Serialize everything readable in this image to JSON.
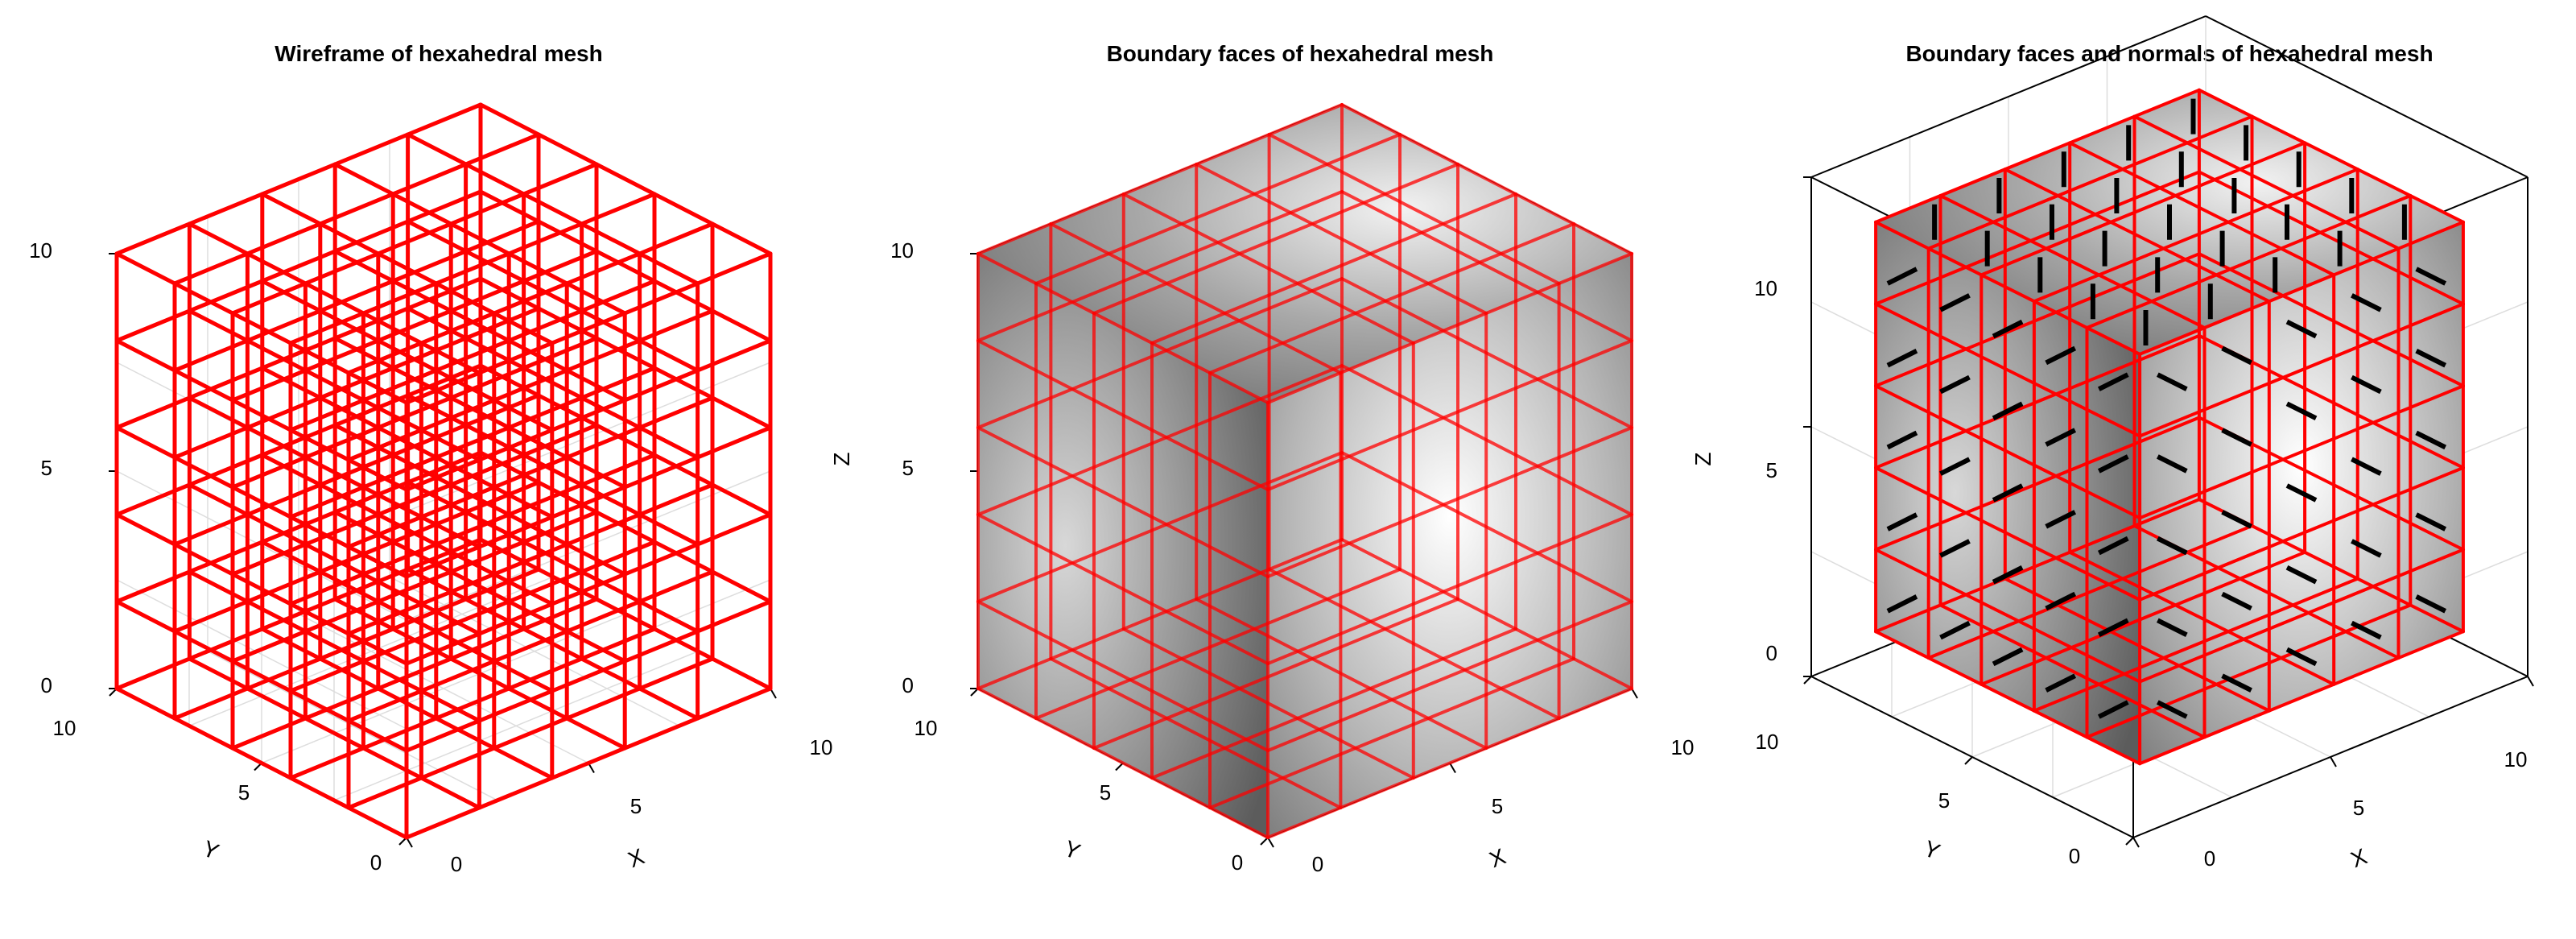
{
  "figure": {
    "panels": [
      {
        "title": "Wireframe of hexahedral mesh",
        "mode": "wireframe"
      },
      {
        "title": "Boundary faces of hexahedral mesh",
        "mode": "faces"
      },
      {
        "title": "Boundary faces and normals of hexahedral mesh",
        "mode": "normals"
      }
    ],
    "axes": {
      "x_label": "X",
      "y_label": "Y",
      "z_label": "Z",
      "x_ticks": [
        "0",
        "5",
        "10"
      ],
      "y_ticks": [
        "0",
        "5",
        "10"
      ],
      "z_ticks": [
        "0",
        "5",
        "10"
      ]
    },
    "mesh": {
      "cells_per_axis": 5,
      "extent": [
        0,
        10
      ]
    },
    "colors": {
      "mesh_edges": "#ff0000",
      "normals": "#000000",
      "grid": "#dddddd",
      "frame": "#000000"
    }
  }
}
